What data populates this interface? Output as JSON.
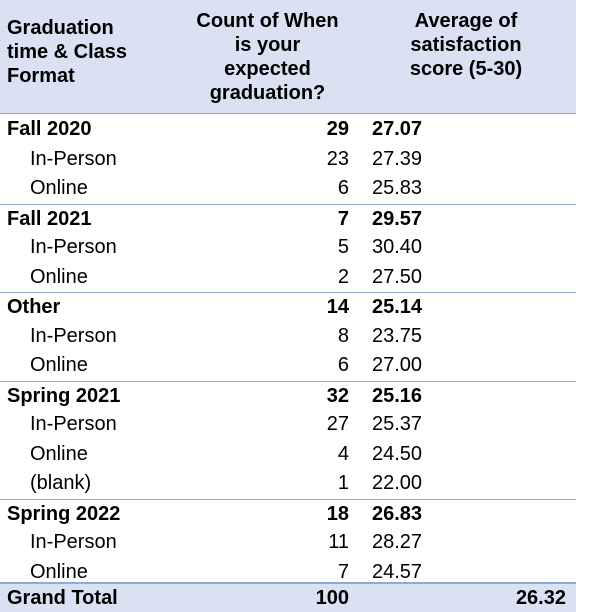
{
  "table": {
    "headers": {
      "label": "Graduation\ntime & Class\nFormat",
      "count": "Count of When\nis your\nexpected\ngraduation?",
      "avg": "Average of\nsatisfaction\nscore (5-30)"
    },
    "rows": [
      {
        "label": "Fall 2020",
        "count": "29",
        "avg": "27.07",
        "level": "group"
      },
      {
        "label": "In-Person",
        "count": "23",
        "avg": "27.39",
        "level": "sub"
      },
      {
        "label": "Online",
        "count": "6",
        "avg": "25.83",
        "level": "sub"
      },
      {
        "label": "Fall 2021",
        "count": "7",
        "avg": "29.57",
        "level": "group"
      },
      {
        "label": "In-Person",
        "count": "5",
        "avg": "30.40",
        "level": "sub"
      },
      {
        "label": "Online",
        "count": "2",
        "avg": "27.50",
        "level": "sub"
      },
      {
        "label": "Other",
        "count": "14",
        "avg": "25.14",
        "level": "group"
      },
      {
        "label": "In-Person",
        "count": "8",
        "avg": "23.75",
        "level": "sub"
      },
      {
        "label": "Online",
        "count": "6",
        "avg": "27.00",
        "level": "sub"
      },
      {
        "label": "Spring 2021",
        "count": "32",
        "avg": "25.16",
        "level": "group"
      },
      {
        "label": "In-Person",
        "count": "27",
        "avg": "25.37",
        "level": "sub"
      },
      {
        "label": "Online",
        "count": "4",
        "avg": "24.50",
        "level": "sub"
      },
      {
        "label": "(blank)",
        "count": "1",
        "avg": "22.00",
        "level": "sub"
      },
      {
        "label": "Spring 2022",
        "count": "18",
        "avg": "26.83",
        "level": "group"
      },
      {
        "label": "In-Person",
        "count": "11",
        "avg": "28.27",
        "level": "sub"
      },
      {
        "label": "Online",
        "count": "7",
        "avg": "24.57",
        "level": "sub"
      }
    ],
    "grand_total": {
      "label": "Grand Total",
      "count": "100",
      "avg": "26.32"
    }
  },
  "colors": {
    "header_bg": "#d9e1f2",
    "border": "#8ea9db"
  }
}
